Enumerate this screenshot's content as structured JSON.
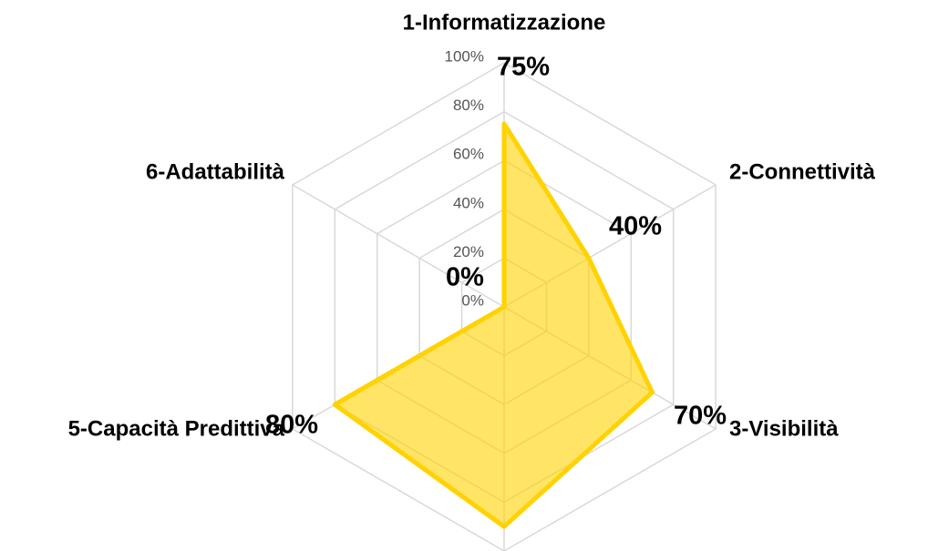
{
  "chart_data": {
    "type": "radar",
    "categories": [
      "1-Informatizzazione",
      "2-Connettività",
      "3-Visibilità",
      null,
      "5-Capacità Predittiva",
      "6-Adattabilità"
    ],
    "values": [
      75,
      40,
      70,
      90,
      80,
      0
    ],
    "value_labels": [
      "75%",
      "40%",
      "70%",
      null,
      "80%",
      "0%"
    ],
    "color": "#ffd200",
    "ylim": [
      0,
      100
    ],
    "yticks": [
      {
        "value": 0,
        "label": "0%"
      },
      {
        "value": 20,
        "label": "20%"
      },
      {
        "value": 40,
        "label": "40%"
      },
      {
        "value": 60,
        "label": "60%"
      },
      {
        "value": 80,
        "label": "80%"
      },
      {
        "value": 100,
        "label": "100%"
      }
    ],
    "grid": true
  }
}
